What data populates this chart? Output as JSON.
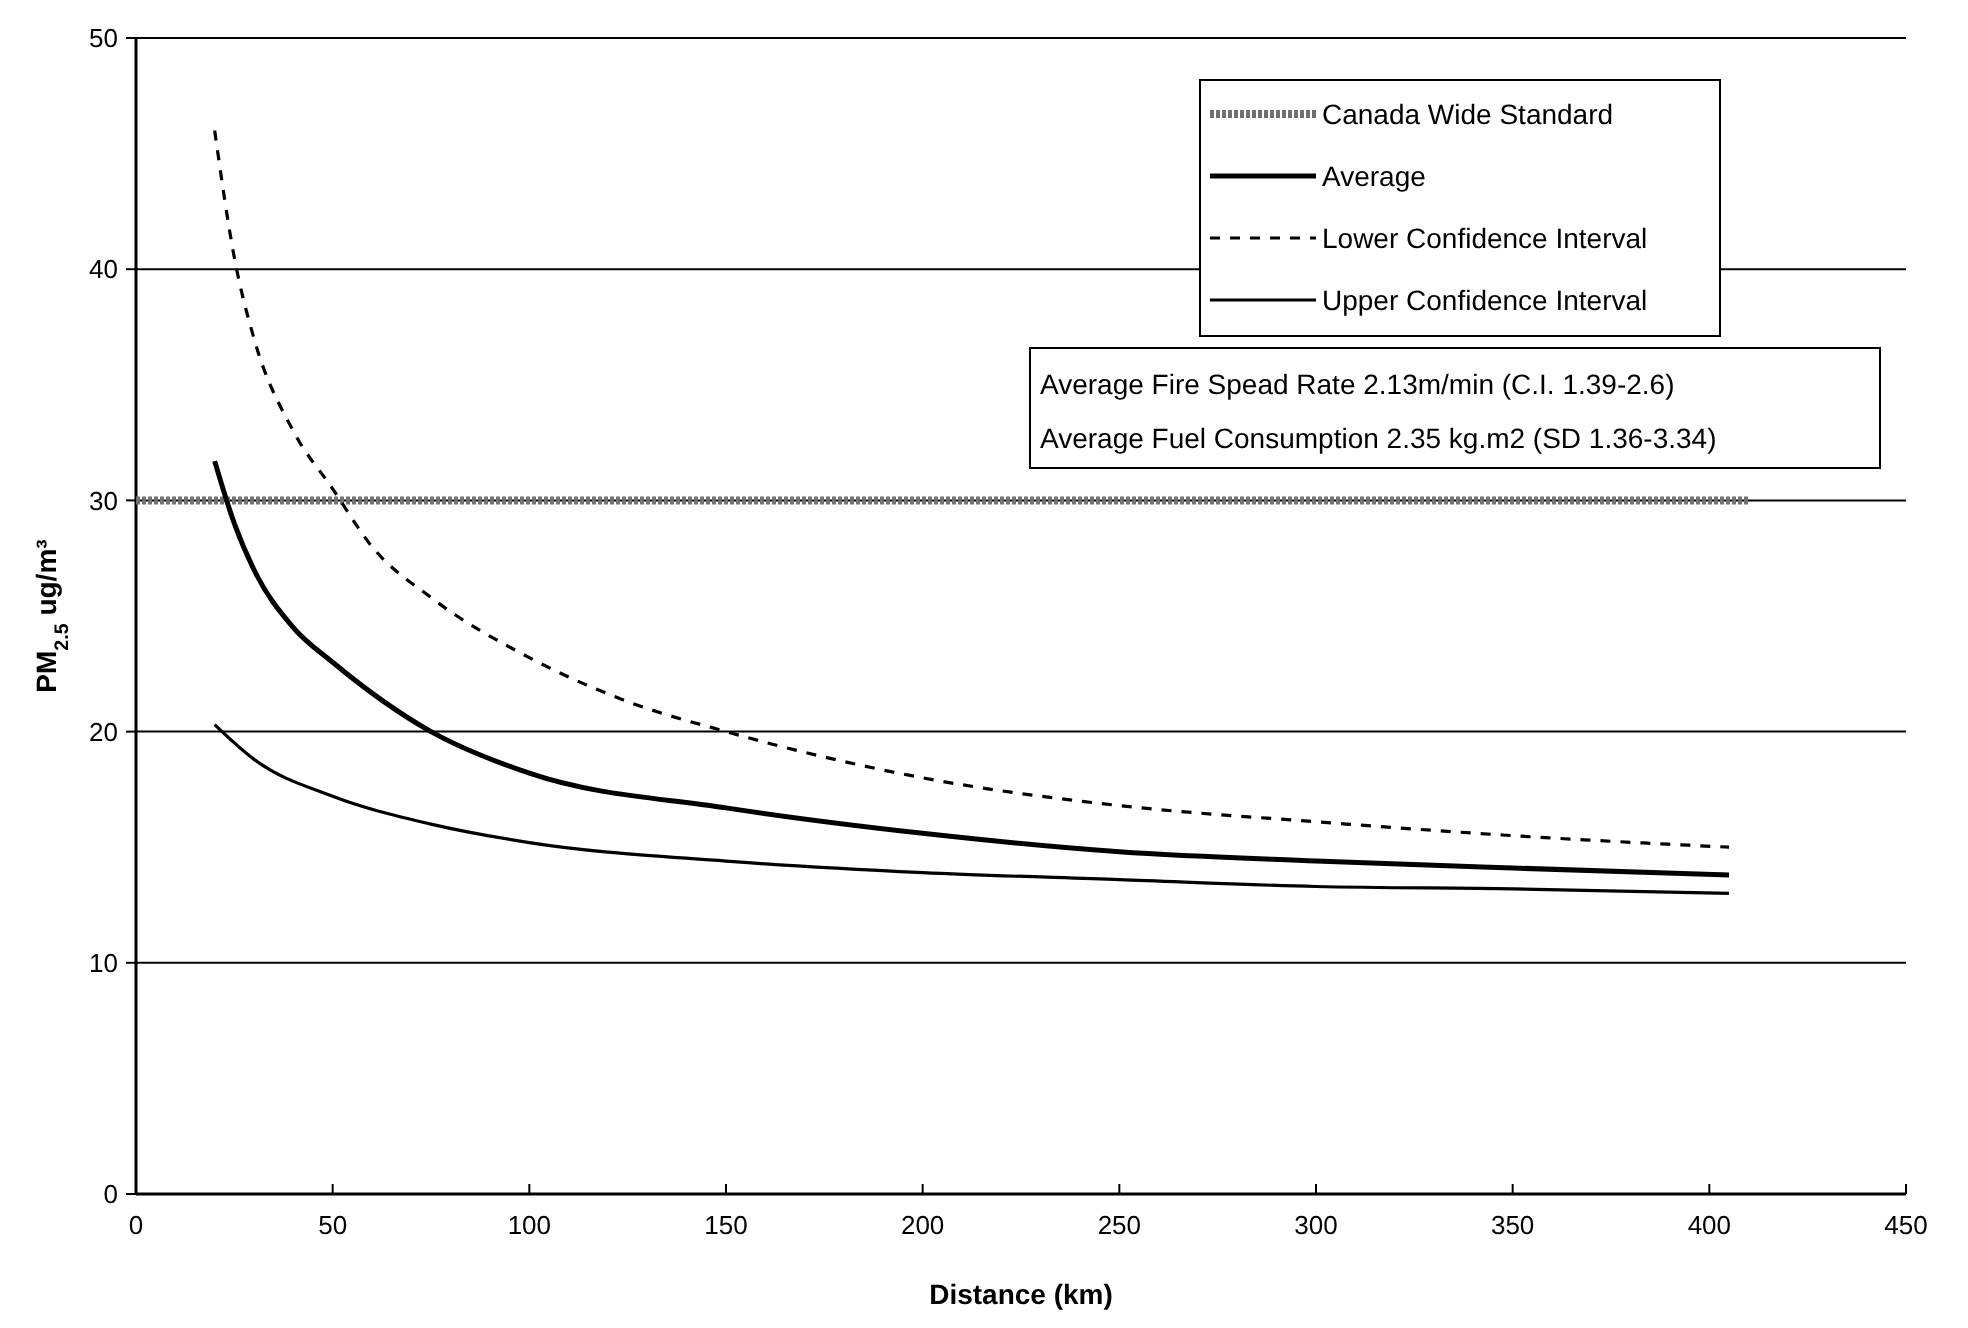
{
  "chart_data": {
    "type": "line",
    "xlabel": "Distance (km)",
    "ylabel": "PM$_{2.5}$ ug/m³",
    "xlim": [
      0,
      450
    ],
    "xticks": [
      0,
      50,
      100,
      150,
      200,
      250,
      300,
      350,
      400,
      450
    ],
    "ylim": [
      0,
      50
    ],
    "yticks": [
      0,
      10,
      20,
      30,
      40,
      50
    ],
    "grid": "y",
    "legend": "top right",
    "series": [
      {
        "name": "Canada Wide Standard",
        "color": "#707070",
        "line_style": "dotted",
        "x": [
          0,
          410
        ],
        "values": [
          30,
          30
        ]
      },
      {
        "name": "Average",
        "color": "#000000",
        "line_style": "solid",
        "x": [
          20,
          25,
          30,
          40,
          50,
          75,
          100,
          150,
          200,
          250,
          300,
          350,
          405
        ],
        "values": [
          31.7,
          29,
          27,
          24.5,
          23,
          20,
          18.2,
          16.7,
          15.6,
          14.8,
          14.4,
          14.1,
          13.8
        ]
      },
      {
        "name": "Lower Confidence Interval",
        "color": "#000000",
        "line_style": "dashed",
        "x": [
          20,
          25,
          30,
          40,
          50,
          60,
          75,
          100,
          125,
          150,
          200,
          250,
          300,
          350,
          405
        ],
        "values": [
          46,
          40.5,
          37,
          33,
          30.5,
          28,
          25.8,
          23.2,
          21.3,
          20,
          18,
          16.8,
          16.1,
          15.5,
          15
        ]
      },
      {
        "name": "Upper Confidence Interval",
        "color": "#000000",
        "line_style": "solid",
        "x": [
          20,
          30,
          50,
          75,
          100,
          150,
          200,
          250,
          300,
          350,
          405
        ],
        "values": [
          20.3,
          18.8,
          17.2,
          16,
          15.2,
          14.4,
          13.9,
          13.6,
          13.3,
          13.2,
          13
        ]
      }
    ],
    "annotations": [
      "Average Fire Spead Rate 2.13m/min (C.I. 1.39-2.6)",
      "Average Fuel Consumption 2.35 kg.m2 (SD 1.36-3.34)"
    ]
  }
}
